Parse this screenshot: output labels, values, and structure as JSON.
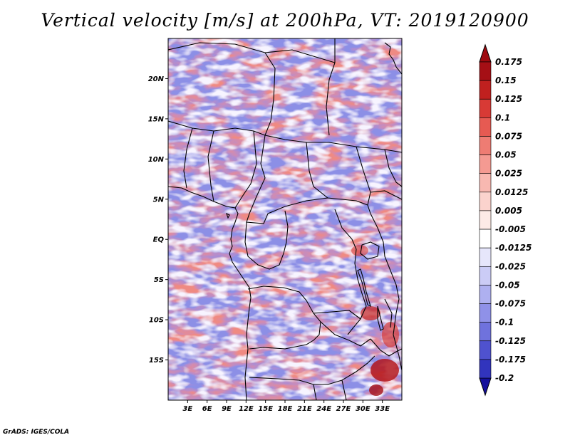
{
  "title": "Vertical velocity [m/s] at 200hPa, VT: 2019120900",
  "credit": "GrADS: IGES/COLA",
  "map": {
    "lon_range": [
      0,
      36
    ],
    "lat_range": [
      -20,
      25
    ],
    "x_ticks": [
      {
        "value": 3,
        "label": "3E"
      },
      {
        "value": 6,
        "label": "6E"
      },
      {
        "value": 9,
        "label": "9E"
      },
      {
        "value": 12,
        "label": "12E"
      },
      {
        "value": 15,
        "label": "15E"
      },
      {
        "value": 18,
        "label": "18E"
      },
      {
        "value": 21,
        "label": "21E"
      },
      {
        "value": 24,
        "label": "24E"
      },
      {
        "value": 27,
        "label": "27E"
      },
      {
        "value": 30,
        "label": "30E"
      },
      {
        "value": 33,
        "label": "33E"
      }
    ],
    "y_ticks": [
      {
        "value": 20,
        "label": "20N"
      },
      {
        "value": 15,
        "label": "15N"
      },
      {
        "value": 10,
        "label": "10N"
      },
      {
        "value": 5,
        "label": "5N"
      },
      {
        "value": 0,
        "label": "EQ"
      },
      {
        "value": -5,
        "label": "5S"
      },
      {
        "value": -10,
        "label": "10S"
      },
      {
        "value": -15,
        "label": "15S"
      }
    ]
  },
  "colorbar": {
    "levels": [
      {
        "label": "0.175",
        "color": "#a50f15"
      },
      {
        "label": "0.15",
        "color": "#c0201f"
      },
      {
        "label": "0.125",
        "color": "#d83a35"
      },
      {
        "label": "0.1",
        "color": "#e65a52"
      },
      {
        "label": "0.075",
        "color": "#ee7c73"
      },
      {
        "label": "0.05",
        "color": "#f49a92"
      },
      {
        "label": "0.025",
        "color": "#f8b8b1"
      },
      {
        "label": "0.0125",
        "color": "#fbd3cd"
      },
      {
        "label": "0.005",
        "color": "#fdeae6"
      },
      {
        "label": "-0.005",
        "color": "#ffffff"
      },
      {
        "label": "-0.0125",
        "color": "#e6e6fb"
      },
      {
        "label": "-0.025",
        "color": "#cbccf6"
      },
      {
        "label": "-0.05",
        "color": "#aeb0f0"
      },
      {
        "label": "-0.075",
        "color": "#8f91e8"
      },
      {
        "label": "-0.1",
        "color": "#6f72dd"
      },
      {
        "label": "-0.125",
        "color": "#4f52cf"
      },
      {
        "label": "-0.175",
        "color": "#3134bd"
      },
      {
        "label": "-0.2",
        "color": "#1a1ca6"
      }
    ],
    "top_color": "#9e0a0f",
    "bottom_color": "#140f9c"
  },
  "colors": {
    "positive": "#f49a92",
    "negative": "#8f91e8",
    "neutral": "#ffffff",
    "border": "#000000"
  }
}
